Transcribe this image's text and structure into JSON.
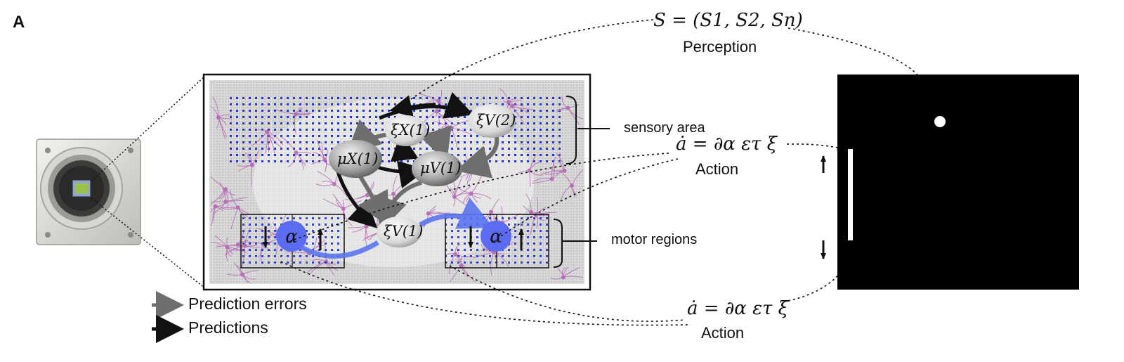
{
  "panel_letter": "A",
  "perception": {
    "formula": "S = (S1, S2, Sn)",
    "label": "Perception"
  },
  "action_top": {
    "formula": "ȧ = ∂α ετ ξ",
    "label": "Action"
  },
  "action_bottom": {
    "formula": "ȧ = ∂α ετ ξ",
    "label": "Action"
  },
  "region_labels": {
    "sensory": "sensory area",
    "motor": "motor regions"
  },
  "nodes": {
    "xi_x1": "ξX(1)",
    "xi_v2": "ξV(2)",
    "mu_x1": "μX(1)",
    "mu_v1": "μV(1)",
    "xi_v1": "ξV(1)",
    "alpha": "α"
  },
  "legend": {
    "errors": "Prediction errors",
    "predictions": "Predictions"
  },
  "colors": {
    "error_arrow": "#6e6e6e",
    "prediction_arrow": "#111111",
    "action_arrow": "#5b74f0",
    "alpha_node": "#5b6cf2",
    "grid_dots": "#2233dd",
    "neurons": "#b060b0"
  }
}
